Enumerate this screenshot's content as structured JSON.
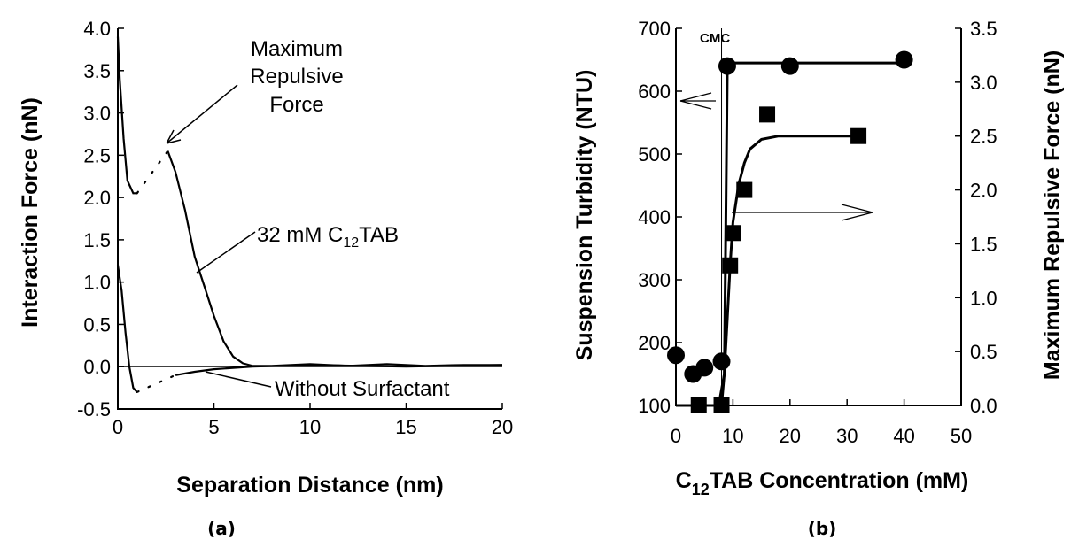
{
  "chart_data": [
    {
      "type": "line",
      "panel_label": "(a)",
      "xlabel": "Separation Distance (nm)",
      "ylabel": "Interaction Force (nN)",
      "xlim": [
        0,
        20
      ],
      "ylim": [
        -0.5,
        4.0
      ],
      "xticks": [
        "0",
        "5",
        "10",
        "15",
        "20"
      ],
      "yticks": [
        "-0.5",
        "0.0",
        "0.5",
        "1.0",
        "1.5",
        "2.0",
        "2.5",
        "3.0",
        "3.5",
        "4.0"
      ],
      "grid": false,
      "series": [
        {
          "name": "32 mM C12TAB",
          "label_main": "32 mM C",
          "label_sub": "12",
          "label_tail": "TAB",
          "x": [
            2.6,
            3.0,
            3.5,
            4.0,
            4.5,
            5.0,
            5.5,
            6.0,
            6.5,
            7.0,
            8,
            10,
            12,
            14,
            16,
            18,
            20
          ],
          "y": [
            2.55,
            2.3,
            1.85,
            1.3,
            0.95,
            0.6,
            0.3,
            0.12,
            0.04,
            0.01,
            0.01,
            0.03,
            0.01,
            0.03,
            0.01,
            0.02,
            0.02
          ],
          "jump_x": [
            0.0,
            0.1,
            0.3,
            0.5,
            0.8,
            1.0
          ],
          "jump_y": [
            3.9,
            3.4,
            2.7,
            2.2,
            2.05,
            2.05
          ]
        },
        {
          "name": "Without Surfactant",
          "x": [
            3.0,
            4.0,
            5.0,
            7.0,
            10,
            15,
            20
          ],
          "y": [
            -0.1,
            -0.06,
            -0.03,
            0.0,
            0.02,
            0.0,
            0.02
          ],
          "jump_x": [
            0.0,
            0.2,
            0.4,
            0.6,
            0.8,
            1.0
          ],
          "jump_y": [
            1.2,
            0.9,
            0.4,
            0.0,
            -0.25,
            -0.3
          ]
        }
      ],
      "annotations": {
        "max_force": [
          "Maximum",
          "Repulsive",
          "Force"
        ],
        "without": "Without Surfactant"
      }
    },
    {
      "type": "scatter",
      "panel_label": "(b)",
      "xlabel_main": "C",
      "xlabel_sub": "12",
      "xlabel_tail": "TAB Concentration (mM)",
      "xlabel": "C12TAB Concentration (mM)",
      "ylabel": "Suspension Turbidity (NTU)",
      "y2label": "Maximum Repulsive Force (nN)",
      "xlim": [
        0,
        50
      ],
      "ylim": [
        100,
        700
      ],
      "y2lim": [
        0.0,
        3.5
      ],
      "xticks": [
        "0",
        "10",
        "20",
        "30",
        "40",
        "50"
      ],
      "yticks": [
        "100",
        "200",
        "300",
        "400",
        "500",
        "600",
        "700"
      ],
      "y2ticks": [
        "0.0",
        "0.5",
        "1.0",
        "1.5",
        "2.0",
        "2.5",
        "3.0",
        "3.5"
      ],
      "grid": false,
      "cmc_label": "CMC",
      "cmc_x": 8,
      "series": [
        {
          "name": "Suspension Turbidity",
          "marker": "circle",
          "axis": "left",
          "x": [
            0,
            3,
            5,
            8,
            9,
            20,
            40
          ],
          "y": [
            180,
            150,
            160,
            170,
            640,
            640,
            650
          ]
        },
        {
          "name": "Maximum Repulsive Force",
          "marker": "square",
          "axis": "right",
          "x": [
            4,
            8,
            9.5,
            10,
            12,
            16,
            32
          ],
          "y": [
            0.0,
            0.0,
            1.3,
            1.6,
            2.0,
            2.7,
            2.5
          ]
        }
      ],
      "fits": {
        "turbidity": {
          "x": [
            0,
            7.5,
            8.5,
            9.0,
            10,
            20,
            40
          ],
          "y": [
            100,
            100,
            150,
            630,
            645,
            645,
            645
          ]
        },
        "force": {
          "x": [
            8.0,
            8.5,
            9.0,
            9.5,
            10,
            11,
            12,
            13,
            15,
            18,
            22,
            32
          ],
          "y": [
            0.0,
            0.3,
            0.8,
            1.3,
            1.7,
            2.05,
            2.25,
            2.38,
            2.47,
            2.5,
            2.5,
            2.5
          ]
        }
      }
    }
  ]
}
